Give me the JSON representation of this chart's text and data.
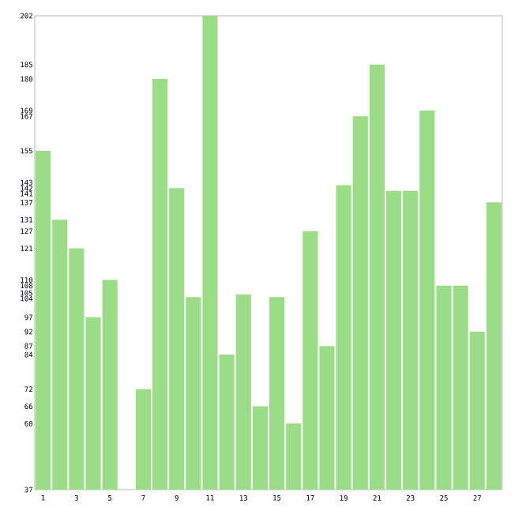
{
  "chart_data": {
    "type": "bar",
    "categories": [
      "1",
      null,
      "3",
      null,
      "5",
      null,
      "7",
      null,
      "9",
      null,
      "11",
      null,
      "13",
      null,
      "15",
      null,
      "17",
      null,
      "19",
      null,
      "21",
      null,
      "23",
      null,
      "25",
      null,
      "27",
      null
    ],
    "values": [
      155,
      131,
      121,
      97,
      110,
      37,
      72,
      180,
      142,
      104,
      202,
      84,
      105,
      66,
      104,
      60,
      127,
      87,
      143,
      167,
      185,
      141,
      141,
      169,
      108,
      108,
      92,
      137
    ],
    "color": "#9bdd87",
    "ylim": [
      37,
      202
    ],
    "yticks": [
      37,
      60,
      66,
      72,
      84,
      87,
      92,
      97,
      104,
      105,
      108,
      110,
      121,
      127,
      131,
      137,
      141,
      142,
      143,
      155,
      167,
      169,
      180,
      185,
      202
    ],
    "grid": false
  }
}
